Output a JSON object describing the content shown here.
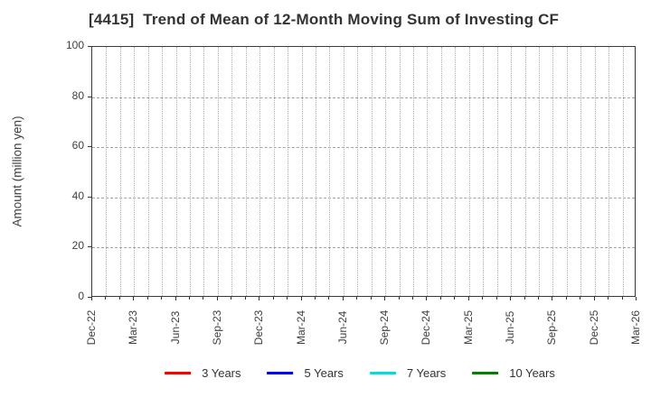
{
  "chart_data": {
    "type": "line",
    "title": "[4415]  Trend of Mean of 12-Month Moving Sum of Investing CF",
    "ylabel": "Amount (million yen)",
    "xlabel": "",
    "ylim": [
      0,
      100
    ],
    "yticks": [
      0,
      20,
      40,
      60,
      80,
      100
    ],
    "x_tick_labels": [
      "Dec-22",
      "Mar-23",
      "Jun-23",
      "Sep-23",
      "Dec-23",
      "Mar-24",
      "Jun-24",
      "Sep-24",
      "Dec-24",
      "Mar-25",
      "Jun-25",
      "Sep-25",
      "Dec-25",
      "Mar-26"
    ],
    "months_total": 39,
    "x_major_interval_months": 3,
    "x_minor_interval_months": 1,
    "grid": true,
    "legend_position": "bottom",
    "series": [
      {
        "name": "3 Years",
        "color": "#ff0000",
        "values": []
      },
      {
        "name": "5 Years",
        "color": "#0000ff",
        "values": []
      },
      {
        "name": "7 Years",
        "color": "#00dddd",
        "values": []
      },
      {
        "name": "10 Years",
        "color": "#008000",
        "values": []
      }
    ]
  }
}
